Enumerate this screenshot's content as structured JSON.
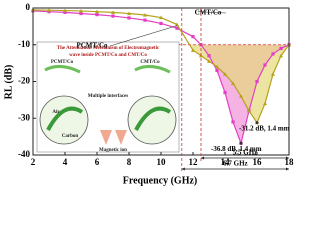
{
  "chart_data": {
    "type": "line",
    "xlabel": "Frequency (GHz)",
    "ylabel": "RL (dB)",
    "x": [
      2,
      3,
      4,
      5,
      6,
      7,
      8,
      9,
      10,
      11,
      12,
      12.5,
      13,
      13.5,
      14,
      14.5,
      15,
      15.5,
      16,
      16.5,
      17,
      17.5,
      18
    ],
    "series": [
      {
        "name": "PCMT/Co",
        "color": "#e23fc6",
        "fill": "#f3a6de",
        "values": [
          -0.8,
          -1,
          -1.2,
          -1.5,
          -1.8,
          -2.2,
          -2.7,
          -3.3,
          -4.2,
          -5.5,
          -7.8,
          -10,
          -13,
          -17,
          -23,
          -31,
          -36.8,
          -28,
          -20,
          -15.5,
          -12.5,
          -11,
          -10
        ]
      },
      {
        "name": "CMT/Co",
        "color": "#b5a21c",
        "fill": "#e6d97a",
        "values": [
          -0.5,
          -0.6,
          -0.7,
          -0.8,
          -1,
          -1.2,
          -1.5,
          -1.9,
          -2.6,
          -4.5,
          -11.5,
          -13,
          -14.5,
          -16,
          -18,
          -20.5,
          -24,
          -28,
          -31.2,
          -26,
          -18,
          -13,
          -10
        ]
      }
    ],
    "xlim": [
      2,
      18
    ],
    "xticks": [
      2,
      4,
      6,
      8,
      10,
      12,
      14,
      16,
      18
    ],
    "ylim": [
      -40,
      0
    ],
    "yticks": [
      0,
      -10,
      -20,
      -30,
      -40
    ],
    "threshold": -10,
    "minima": [
      {
        "label": "-31.2 dB, 1.4 mm",
        "x": 16,
        "y": -31.2
      },
      {
        "label": "-36.8 dB, 1.4 mm",
        "x": 15,
        "y": -36.8
      }
    ],
    "bandwidths": [
      {
        "label": "5.5 GHz",
        "start": 12.5,
        "end": 18
      },
      {
        "label": "6.7 GHz",
        "start": 11.3,
        "end": 18
      }
    ],
    "inset": {
      "title_lines": [
        "The Attenuation Mechanism of Electromagnetic",
        "wave inside PCMT/Co and CMT/Co"
      ],
      "labels": [
        "PCMT/Co",
        "CMT/Co",
        "Multiple interfaces",
        "Air",
        "Carbon",
        "Magnetic ion"
      ]
    }
  }
}
